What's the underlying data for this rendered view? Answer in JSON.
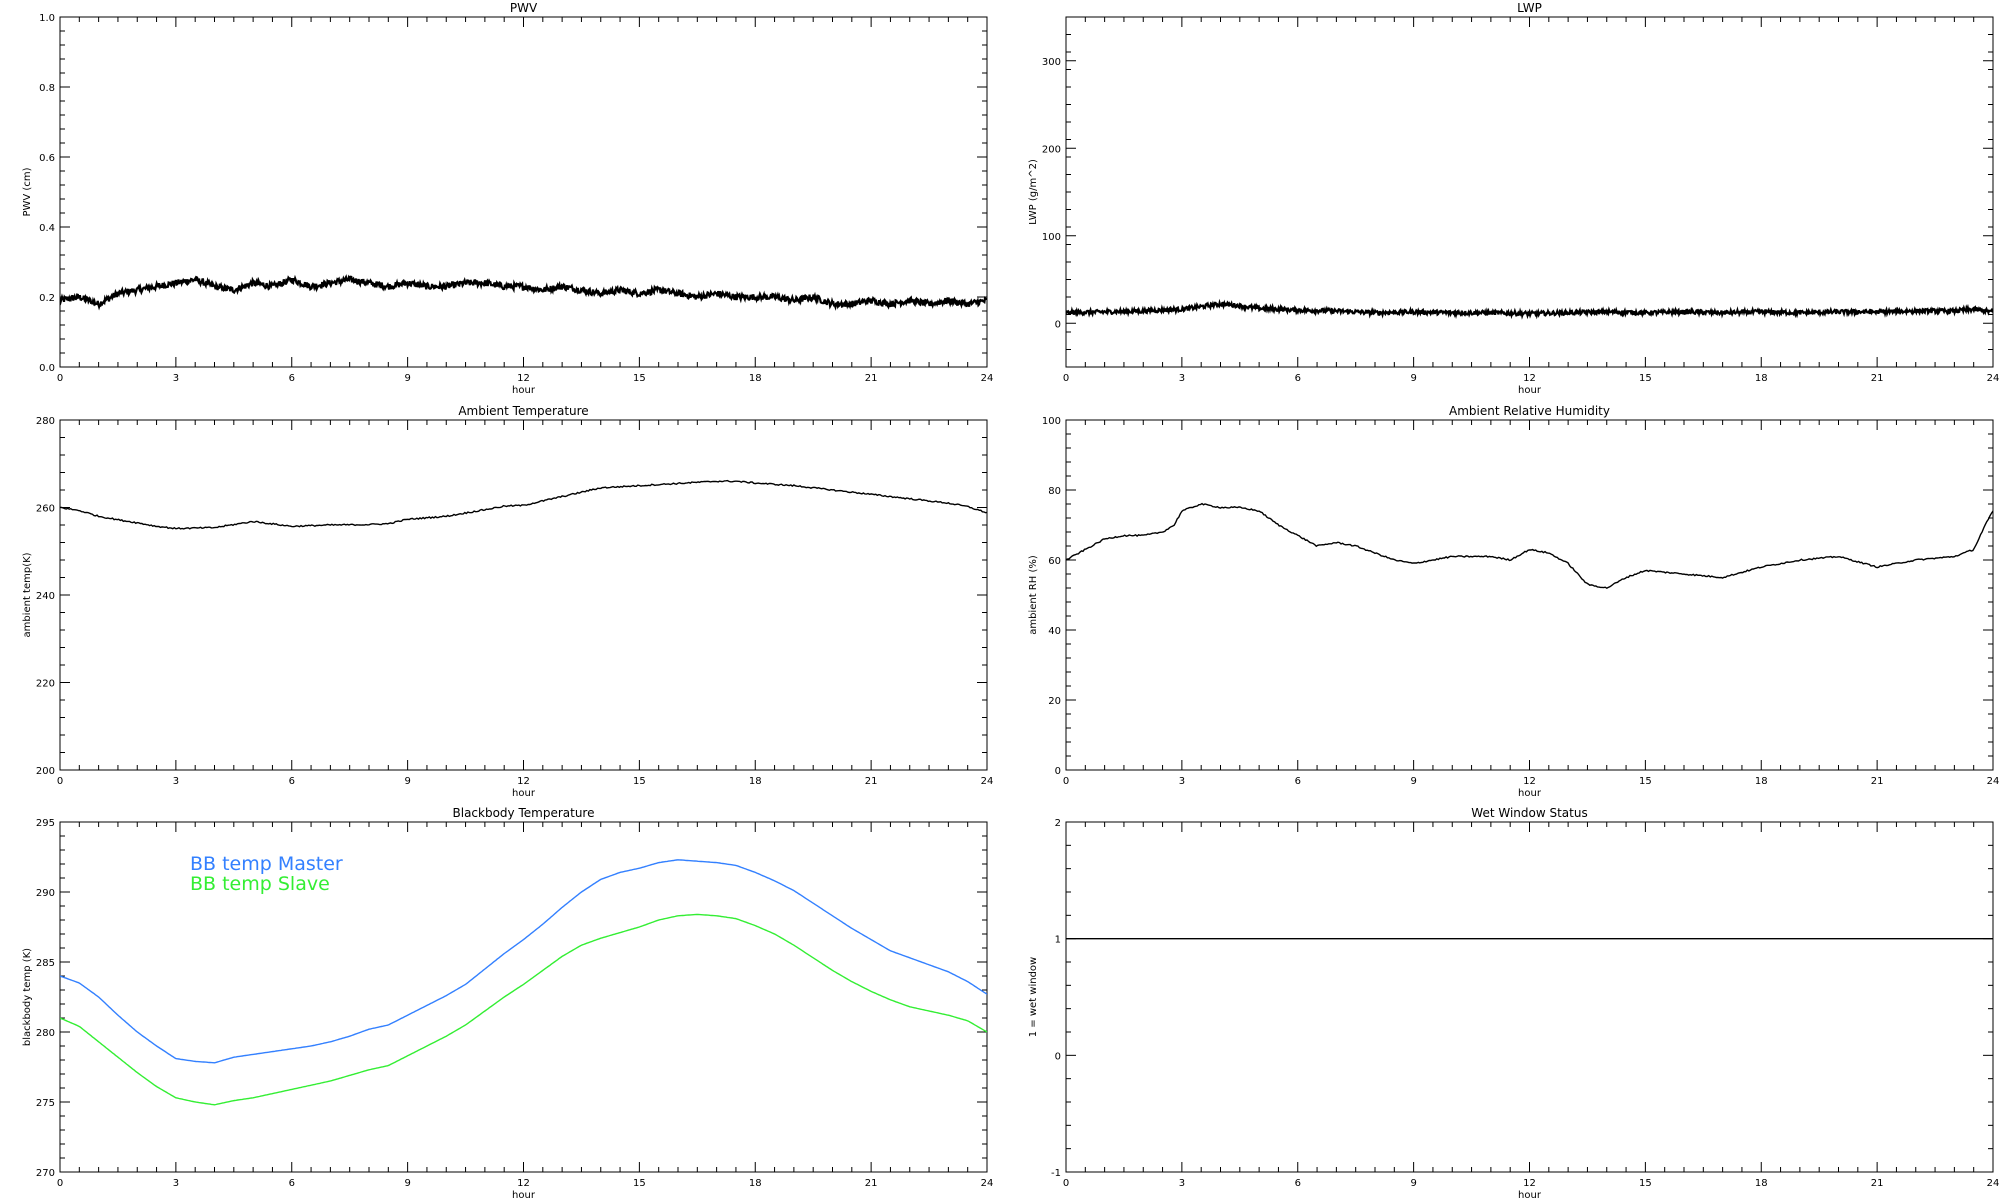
{
  "chart_data": [
    {
      "type": "line",
      "title": "PWV",
      "xlabel": "hour",
      "ylabel": "PWV (cm)",
      "xlim": [
        0,
        24
      ],
      "ylim": [
        0,
        1.0
      ],
      "xticks": [
        "0",
        "3",
        "6",
        "9",
        "12",
        "15",
        "18",
        "21",
        "24"
      ],
      "yticks": [
        "0.0",
        "0.2",
        "0.4",
        "0.6",
        "0.8",
        "1.0"
      ],
      "grid": false,
      "series": [
        {
          "color": "#000000",
          "style": "noisy",
          "x": [
            0,
            0.5,
            1,
            1.5,
            2,
            2.5,
            3,
            3.5,
            4,
            4.5,
            5,
            5.5,
            6,
            6.5,
            7,
            7.5,
            8,
            8.5,
            9,
            9.5,
            10,
            10.5,
            11,
            11.5,
            12,
            12.5,
            13,
            13.5,
            14,
            14.5,
            15,
            15.5,
            16,
            16.5,
            17,
            17.5,
            18,
            18.5,
            19,
            19.5,
            20,
            20.5,
            21,
            21.5,
            22,
            22.5,
            23,
            23.5,
            24
          ],
          "y": [
            0.19,
            0.2,
            0.18,
            0.21,
            0.22,
            0.23,
            0.24,
            0.25,
            0.23,
            0.22,
            0.24,
            0.23,
            0.25,
            0.23,
            0.24,
            0.25,
            0.24,
            0.23,
            0.24,
            0.23,
            0.23,
            0.24,
            0.24,
            0.23,
            0.23,
            0.22,
            0.23,
            0.22,
            0.21,
            0.22,
            0.21,
            0.22,
            0.21,
            0.2,
            0.21,
            0.2,
            0.2,
            0.2,
            0.19,
            0.2,
            0.18,
            0.18,
            0.19,
            0.18,
            0.19,
            0.18,
            0.19,
            0.18,
            0.19
          ]
        }
      ]
    },
    {
      "type": "line",
      "title": "LWP",
      "xlabel": "hour",
      "ylabel": "LWP (g/m^2)",
      "xlim": [
        0,
        24
      ],
      "ylim": [
        -50,
        350
      ],
      "xticks": [
        "0",
        "3",
        "6",
        "9",
        "12",
        "15",
        "18",
        "21",
        "24"
      ],
      "yticks": [
        "0",
        "100",
        "200",
        "300"
      ],
      "grid": false,
      "series": [
        {
          "color": "#000000",
          "style": "noisy",
          "x": [
            0,
            1,
            2,
            3,
            4,
            4.5,
            5,
            6,
            7,
            8,
            9,
            10,
            11,
            12,
            13,
            14,
            15,
            16,
            17,
            18,
            19,
            20,
            21,
            22,
            23,
            23.5,
            24
          ],
          "y": [
            12,
            13,
            14,
            16,
            22,
            20,
            17,
            15,
            14,
            12,
            13,
            12,
            12,
            11,
            12,
            13,
            12,
            13,
            12,
            13,
            12,
            13,
            13,
            14,
            14,
            16,
            13
          ]
        }
      ]
    },
    {
      "type": "line",
      "title": "Ambient Temperature",
      "xlabel": "hour",
      "ylabel": "ambient temp(K)",
      "xlim": [
        0,
        24
      ],
      "ylim": [
        200,
        280
      ],
      "xticks": [
        "0",
        "3",
        "6",
        "9",
        "12",
        "15",
        "18",
        "21",
        "24"
      ],
      "yticks": [
        "200",
        "220",
        "240",
        "260",
        "280"
      ],
      "grid": false,
      "series": [
        {
          "color": "#000000",
          "style": "plain",
          "x": [
            0,
            0.5,
            1,
            1.5,
            2,
            2.5,
            3,
            4,
            5,
            6,
            7,
            8,
            8.5,
            9,
            10,
            11,
            11.5,
            12,
            13,
            14,
            15,
            16,
            17,
            17.5,
            18,
            19,
            20,
            21,
            22,
            23,
            23.5,
            24
          ],
          "y": [
            260,
            259.3,
            258.0,
            257.2,
            256.5,
            255.7,
            255.2,
            255.4,
            256.8,
            255.7,
            256.0,
            256.1,
            256.3,
            257.3,
            258.0,
            259.5,
            260.3,
            260.5,
            262.5,
            264.5,
            265.0,
            265.5,
            266.0,
            266.0,
            265.6,
            265.0,
            264.0,
            263.0,
            262.0,
            261.0,
            260.2,
            258.8
          ]
        }
      ]
    },
    {
      "type": "line",
      "title": "Ambient Relative Humidity",
      "xlabel": "hour",
      "ylabel": "ambient RH (%)",
      "xlim": [
        0,
        24
      ],
      "ylim": [
        0,
        100
      ],
      "xticks": [
        "0",
        "3",
        "6",
        "9",
        "12",
        "15",
        "18",
        "21",
        "24"
      ],
      "yticks": [
        "0",
        "20",
        "40",
        "60",
        "80",
        "100"
      ],
      "grid": false,
      "series": [
        {
          "color": "#000000",
          "style": "plain",
          "x": [
            0,
            0.5,
            1,
            1.5,
            2,
            2.5,
            2.8,
            3,
            3.5,
            4,
            4.5,
            5,
            5.5,
            6,
            6.5,
            7,
            7.5,
            8,
            8.5,
            9,
            10,
            11,
            11.5,
            12,
            12.5,
            13,
            13.5,
            14,
            14.5,
            15,
            16,
            17,
            18,
            19,
            20,
            21,
            22,
            23,
            23.5,
            23.8,
            24
          ],
          "y": [
            60,
            63,
            66,
            67,
            67,
            68,
            70,
            74,
            76,
            75,
            75,
            74,
            70,
            67,
            64,
            65,
            64,
            62,
            60,
            59,
            61,
            61,
            60,
            63,
            62,
            59,
            53,
            52,
            55,
            57,
            56,
            55,
            58,
            60,
            61,
            58,
            60,
            61,
            63,
            70,
            74
          ]
        }
      ]
    },
    {
      "type": "line",
      "title": "Blackbody Temperature",
      "xlabel": "hour",
      "ylabel": "blackbody temp (K)",
      "xlim": [
        0,
        24
      ],
      "ylim": [
        270,
        295
      ],
      "xticks": [
        "0",
        "3",
        "6",
        "9",
        "12",
        "15",
        "18",
        "21",
        "24"
      ],
      "yticks": [
        "270",
        "275",
        "280",
        "285",
        "290",
        "295"
      ],
      "grid": false,
      "legend_position": "upper-left",
      "series": [
        {
          "name": "BB temp Master",
          "color": "#3380ff",
          "style": "plain",
          "x": [
            0,
            0.5,
            1,
            1.5,
            2,
            2.5,
            3,
            3.5,
            4,
            4.5,
            5,
            5.5,
            6,
            6.5,
            7,
            7.5,
            8,
            8.5,
            9,
            9.5,
            10,
            10.5,
            11,
            11.5,
            12,
            12.5,
            13,
            13.5,
            14,
            14.5,
            15,
            15.5,
            16,
            16.5,
            17,
            17.5,
            18,
            18.5,
            19,
            19.5,
            20,
            20.5,
            21,
            21.5,
            22,
            22.5,
            23,
            23.5,
            24
          ],
          "y": [
            284.0,
            283.5,
            282.5,
            281.2,
            280.0,
            279.0,
            278.1,
            277.9,
            277.8,
            278.2,
            278.4,
            278.6,
            278.8,
            279.0,
            279.3,
            279.7,
            280.2,
            280.5,
            281.2,
            281.9,
            282.6,
            283.4,
            284.5,
            285.6,
            286.6,
            287.7,
            288.9,
            290.0,
            290.9,
            291.4,
            291.7,
            292.1,
            292.3,
            292.2,
            292.1,
            291.9,
            291.4,
            290.8,
            290.1,
            289.2,
            288.3,
            287.4,
            286.6,
            285.8,
            285.3,
            284.8,
            284.3,
            283.6,
            282.7
          ]
        },
        {
          "name": "BB temp Slave",
          "color": "#33ee33",
          "style": "plain",
          "x": [
            0,
            0.5,
            1,
            1.5,
            2,
            2.5,
            3,
            3.5,
            4,
            4.5,
            5,
            5.5,
            6,
            6.5,
            7,
            7.5,
            8,
            8.5,
            9,
            9.5,
            10,
            10.5,
            11,
            11.5,
            12,
            12.5,
            13,
            13.5,
            14,
            14.5,
            15,
            15.5,
            16,
            16.5,
            17,
            17.5,
            18,
            18.5,
            19,
            19.5,
            20,
            20.5,
            21,
            21.5,
            22,
            22.5,
            23,
            23.5,
            24
          ],
          "y": [
            281.0,
            280.4,
            279.3,
            278.2,
            277.1,
            276.1,
            275.3,
            275.0,
            274.8,
            275.1,
            275.3,
            275.6,
            275.9,
            276.2,
            276.5,
            276.9,
            277.3,
            277.6,
            278.3,
            279.0,
            279.7,
            280.5,
            281.5,
            282.5,
            283.4,
            284.4,
            285.4,
            286.2,
            286.7,
            287.1,
            287.5,
            288.0,
            288.3,
            288.4,
            288.3,
            288.1,
            287.6,
            287.0,
            286.2,
            285.3,
            284.4,
            283.6,
            282.9,
            282.3,
            281.8,
            281.5,
            281.2,
            280.8,
            280.0
          ]
        }
      ]
    },
    {
      "type": "line",
      "title": "Wet Window Status",
      "xlabel": "hour",
      "ylabel": "1 = wet window",
      "xlim": [
        0,
        24
      ],
      "ylim": [
        -1,
        2
      ],
      "xticks": [
        "0",
        "3",
        "6",
        "9",
        "12",
        "15",
        "18",
        "21",
        "24"
      ],
      "yticks": [
        "-1",
        "0",
        "1",
        "2"
      ],
      "grid": false,
      "series": [
        {
          "color": "#000000",
          "style": "plain",
          "x": [
            0,
            24
          ],
          "y": [
            1,
            1
          ]
        }
      ]
    }
  ]
}
